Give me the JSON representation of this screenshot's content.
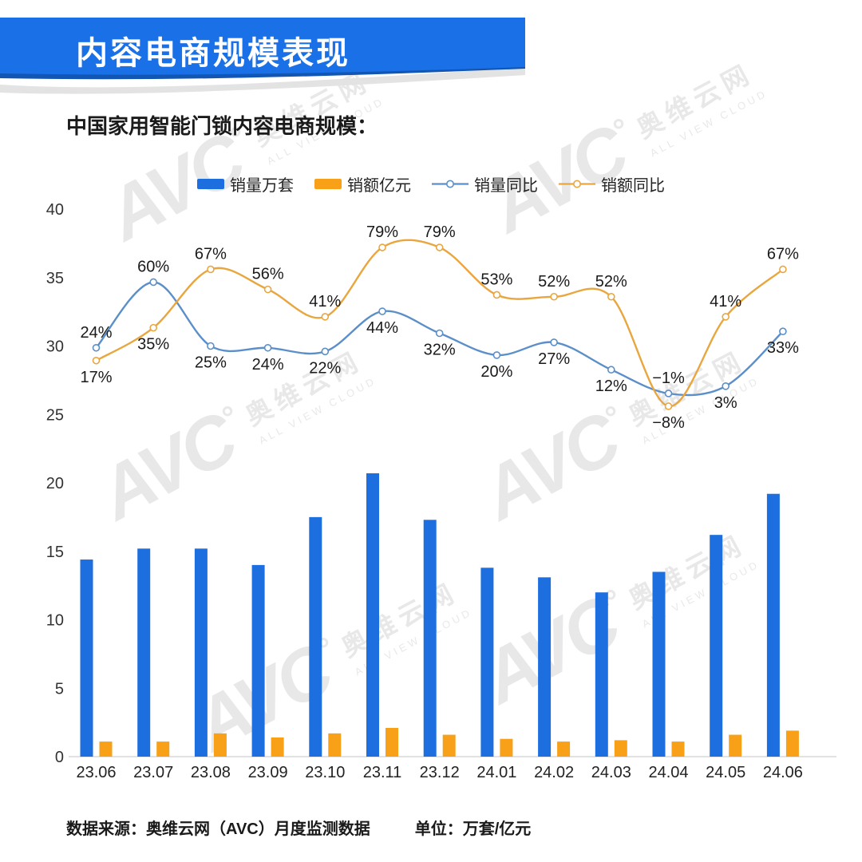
{
  "banner": {
    "title": "内容电商规模表现"
  },
  "subtitle": "中国家用智能门锁内容电商规模：",
  "watermark": {
    "logo": "AVC",
    "dot": "°",
    "cn": "奥维云网",
    "en": "ALL VIEW CLOUD"
  },
  "footer": {
    "source": "数据来源：奥维云网（AVC）月度监测数据",
    "unit": "单位：万套/亿元"
  },
  "colors": {
    "banner_blue": "#1a70e6",
    "banner_dark_blue": "#1256b4",
    "banner_shadow_gray": "#e3e3e3",
    "bar_blue": "#1d6fe0",
    "bar_orange": "#f7a018",
    "line_blue": "#5b8fc9",
    "line_orange": "#e9a63f",
    "axis_line": "#d8d8d8",
    "tick_text": "#333333",
    "label_text": "#1a1a1a"
  },
  "chart_data": {
    "type": "bar+line",
    "title": "中国家用智能门锁内容电商规模",
    "categories": [
      "23.06",
      "23.07",
      "23.08",
      "23.09",
      "23.10",
      "23.11",
      "23.12",
      "24.01",
      "24.02",
      "24.03",
      "24.04",
      "24.05",
      "24.06"
    ],
    "left_axis": {
      "min": 0,
      "max": 40,
      "step": 5,
      "grid": false
    },
    "legend_position": "top-center",
    "series": [
      {
        "name": "销量万套",
        "type": "bar",
        "color": "#1d6fe0",
        "values": [
          14.4,
          15.2,
          15.2,
          14.0,
          17.5,
          20.7,
          17.3,
          13.8,
          13.1,
          12.0,
          13.5,
          16.2,
          19.2
        ]
      },
      {
        "name": "销额亿元",
        "type": "bar",
        "color": "#f7a018",
        "values": [
          1.1,
          1.1,
          1.7,
          1.4,
          1.7,
          2.1,
          1.6,
          1.3,
          1.1,
          1.2,
          1.1,
          1.6,
          1.9
        ]
      },
      {
        "name": "销量同比",
        "type": "line",
        "color": "#5b8fc9",
        "unit": "%",
        "values": [
          24,
          60,
          25,
          24,
          22,
          44,
          32,
          20,
          27,
          12,
          -1,
          3,
          33
        ],
        "labels": [
          "24%",
          "60%",
          "25%",
          "24%",
          "22%",
          "44%",
          "32%",
          "20%",
          "27%",
          "12%",
          "−1%",
          "3%",
          "33%"
        ],
        "label_side": [
          "above",
          "above",
          "below",
          "below",
          "below",
          "below",
          "below",
          "below",
          "below",
          "below",
          "above",
          "below",
          "below"
        ]
      },
      {
        "name": "销额同比",
        "type": "line",
        "color": "#e9a63f",
        "unit": "%",
        "values": [
          17,
          35,
          67,
          56,
          41,
          79,
          79,
          53,
          52,
          52,
          -8,
          41,
          67
        ],
        "labels": [
          "17%",
          "35%",
          "67%",
          "56%",
          "41%",
          "79%",
          "79%",
          "53%",
          "52%",
          "52%",
          "−8%",
          "41%",
          "67%"
        ],
        "label_side": [
          "below",
          "below",
          "above",
          "above",
          "above",
          "above",
          "above",
          "above",
          "above",
          "above",
          "below",
          "above",
          "above"
        ]
      }
    ]
  }
}
